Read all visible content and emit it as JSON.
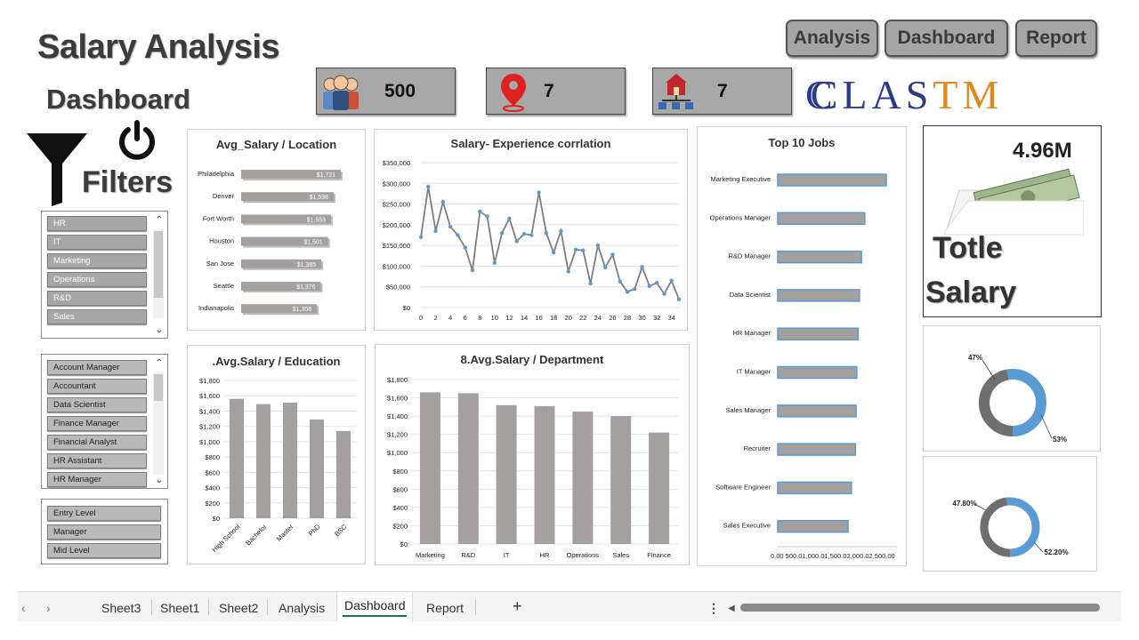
{
  "title": "Salary Analysis",
  "subtitle": "Dashboard",
  "filters_label": "Filters",
  "nav": {
    "analysis": "Analysis",
    "dashboard": "Dashboard",
    "report": "Report"
  },
  "kpis": {
    "employees": "500",
    "locations": "7",
    "departments": "7"
  },
  "logo": {
    "letters": [
      "C",
      "C",
      "L",
      "A",
      "S",
      "T",
      "M"
    ],
    "colors": [
      "#2a3a8c",
      "#2a3a8c",
      "#2a3a8c",
      "#2a3a8c",
      "#2a3a8c",
      "#e08a1e",
      "#e08a1e"
    ]
  },
  "slicers": {
    "departments": [
      "HR",
      "IT",
      "Marketing",
      "Operations",
      "R&D",
      "Sales"
    ],
    "jobs": [
      "Account Manager",
      "Accountant",
      "Data Scientist",
      "Finance Manager",
      "Financial Analyst",
      "HR Assistant",
      "HR Manager"
    ],
    "levels": [
      "Entry Level",
      "Manager",
      "Mid Level"
    ]
  },
  "total_salary": {
    "value": "4.96M",
    "label_line1": "Totle",
    "label_line2": "Salary"
  },
  "donut1": {
    "dark_label": "47%",
    "light_label": "53%",
    "dark_value": 47,
    "light_value": 53
  },
  "donut2": {
    "dark_label": "47.80%",
    "light_label": "52.20%",
    "dark_value": 47.8,
    "light_value": 52.2
  },
  "colors": {
    "bar": "#a5a0a0",
    "accent": "#5b9bd5",
    "dark_gray": "#6f6f6f"
  },
  "sheets": [
    "Sheet3",
    "Sheet1",
    "Sheet2",
    "Analysis",
    "Dashboard",
    "Report"
  ],
  "active_sheet": "Dashboard",
  "chart_data": [
    {
      "type": "bar",
      "orientation": "horizontal",
      "title": "Avg_Salary / Location",
      "categories": [
        "Philadelphia",
        "Denver",
        "Fort Worth",
        "Houston",
        "San Jose",
        "Seattle",
        "Indianapolis"
      ],
      "values": [
        1721,
        1598,
        1553,
        1501,
        1385,
        1376,
        1308
      ],
      "labels": [
        "$1,721",
        "$1,598",
        "$1,553",
        "$1,501",
        "$1,385",
        "$1,376",
        "$1,308"
      ]
    },
    {
      "type": "line",
      "title": "Salary- Experience corrlation",
      "x": [
        0,
        1,
        2,
        3,
        4,
        5,
        6,
        7,
        8,
        9,
        10,
        11,
        12,
        13,
        14,
        15,
        16,
        17,
        18,
        19,
        20,
        21,
        22,
        23,
        24,
        25,
        26,
        27,
        28,
        29,
        30,
        31,
        32,
        33,
        34,
        35
      ],
      "values": [
        170000,
        292000,
        185000,
        255000,
        195000,
        175000,
        145000,
        90000,
        232000,
        220000,
        108000,
        180000,
        215000,
        160000,
        178000,
        175000,
        278000,
        180000,
        133000,
        185000,
        87000,
        140000,
        138000,
        58000,
        150000,
        97000,
        128000,
        63000,
        38000,
        45000,
        98000,
        52000,
        60000,
        33000,
        65000,
        20000
      ],
      "x_ticks": [
        "0",
        "2",
        "4",
        "6",
        "8",
        "10",
        "12",
        "14",
        "16",
        "18",
        "20",
        "22",
        "24",
        "26",
        "28",
        "30",
        "32",
        "34"
      ],
      "y_ticks": [
        "$0",
        "$50,000",
        "$100,000",
        "$150,000",
        "$200,000",
        "$250,000",
        "$300,000",
        "$350,000"
      ],
      "ylim": [
        0,
        350000
      ]
    },
    {
      "type": "bar",
      "orientation": "horizontal",
      "title": "Top 10 Jobs",
      "categories": [
        "Marketing Executive",
        "Operations Manager",
        "R&D Manager",
        "Data Scientist",
        "HR Manager",
        "IT Manager",
        "Sales Manager",
        "Recruiter",
        "Software Engineer",
        "Sales Executive"
      ],
      "values": [
        1620,
        1300,
        1250,
        1220,
        1200,
        1180,
        1170,
        1160,
        1100,
        1050
      ],
      "x_tick_text": "0.00 500.01,000.01,500.02,000.02,500.00",
      "xlim": [
        0,
        1700
      ]
    },
    {
      "type": "bar",
      "title": ".Avg.Salary / Education",
      "categories": [
        "High School",
        "Bachelor",
        "Master",
        "PhD",
        "BSC"
      ],
      "values": [
        1560,
        1490,
        1510,
        1290,
        1140
      ],
      "y_ticks": [
        "$0",
        "$200",
        "$400",
        "$600",
        "$800",
        "$1,000",
        "$1,200",
        "$1,400",
        "$1,600",
        "$1,800"
      ],
      "ylim": [
        0,
        1800
      ]
    },
    {
      "type": "bar",
      "title": "8.Avg.Salary / Department",
      "categories": [
        "Marketing",
        "R&D",
        "IT",
        "HR",
        "Operations",
        "Sales",
        "Finance"
      ],
      "values": [
        1660,
        1650,
        1520,
        1510,
        1450,
        1400,
        1220
      ],
      "y_ticks": [
        "$0",
        "$200",
        "$400",
        "$600",
        "$800",
        "$1,000",
        "$1,200",
        "$1,400",
        "$1,600",
        "$1,800"
      ],
      "ylim": [
        0,
        1800
      ]
    },
    {
      "type": "pie",
      "title": "",
      "labels": [
        "47%",
        "53%"
      ],
      "values": [
        47,
        53
      ]
    },
    {
      "type": "pie",
      "title": "",
      "labels": [
        "47.80%",
        "52.20%"
      ],
      "values": [
        47.8,
        52.2
      ]
    }
  ]
}
